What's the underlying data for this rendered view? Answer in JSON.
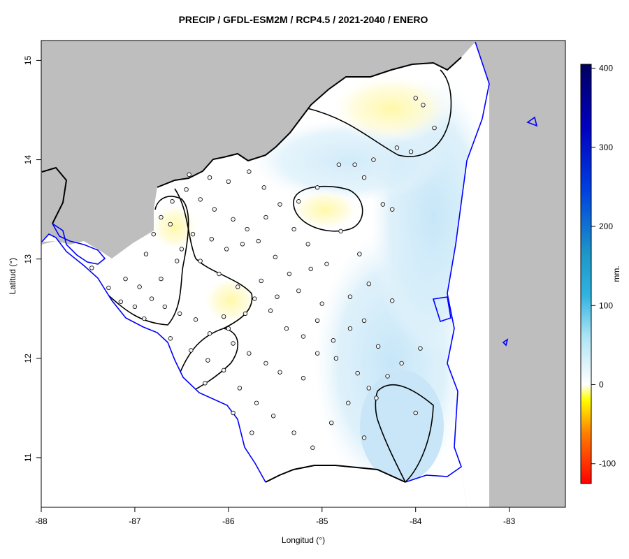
{
  "title": "PRECIP / GFDL-ESM2M / RCP4.5 / 2021-2040 / ENERO",
  "xlabel": "Longitud (°)",
  "ylabel": "Latitud (°)",
  "x_ticks": [
    "-88",
    "-87",
    "-86",
    "-85",
    "-84",
    "-83"
  ],
  "y_ticks": [
    "11",
    "12",
    "13",
    "14",
    "15"
  ],
  "legend": {
    "unit": "mm.",
    "ticks": [
      "-100",
      "0",
      "100",
      "200",
      "300",
      "400"
    ]
  },
  "colors": {
    "land_background": "#bebebe",
    "coastline": "#0000ff",
    "border": "#000000",
    "contour": "#000000"
  },
  "chart_data": {
    "type": "heatmap",
    "title": "PRECIP / GFDL-ESM2M / RCP4.5 / 2021-2040 / ENERO",
    "xlabel": "Longitud (°)",
    "ylabel": "Latitud (°)",
    "xlim": [
      -88,
      -82.4
    ],
    "ylim": [
      10.5,
      15.2
    ],
    "colorbar": {
      "unit": "mm.",
      "range": [
        -125,
        405
      ],
      "ticks": [
        -100,
        0,
        100,
        200,
        300,
        400
      ]
    },
    "regions": [
      {
        "name": "yellow-northeast",
        "lon": -84.1,
        "lat": 14.5,
        "value": -15
      },
      {
        "name": "yellow-central-north",
        "lon": -84.9,
        "lat": 13.5,
        "value": -8
      },
      {
        "name": "yellow-west",
        "lon": -86.7,
        "lat": 13.35,
        "value": -6
      },
      {
        "name": "yellow-center",
        "lon": -85.9,
        "lat": 12.6,
        "value": -8
      },
      {
        "name": "blue-southeast",
        "lon": -84.1,
        "lat": 11.3,
        "value": 35
      },
      {
        "name": "blue-east",
        "lon": -83.9,
        "lat": 12.8,
        "value": 15
      }
    ],
    "stations": [
      [
        -87.46,
        12.91
      ],
      [
        -87.28,
        12.71
      ],
      [
        -87.15,
        12.57
      ],
      [
        -87.0,
        12.52
      ],
      [
        -86.82,
        12.6
      ],
      [
        -86.68,
        12.52
      ],
      [
        -86.52,
        12.45
      ],
      [
        -86.35,
        12.39
      ],
      [
        -86.2,
        12.25
      ],
      [
        -86.05,
        12.42
      ],
      [
        -85.95,
        12.15
      ],
      [
        -85.78,
        12.05
      ],
      [
        -85.6,
        11.95
      ],
      [
        -85.45,
        11.86
      ],
      [
        -85.2,
        11.8
      ],
      [
        -85.05,
        12.05
      ],
      [
        -84.88,
        12.18
      ],
      [
        -84.7,
        12.3
      ],
      [
        -84.55,
        12.38
      ],
      [
        -84.4,
        12.12
      ],
      [
        -84.6,
        13.05
      ],
      [
        -84.8,
        13.28
      ],
      [
        -84.95,
        12.95
      ],
      [
        -85.12,
        12.9
      ],
      [
        -85.35,
        12.85
      ],
      [
        -85.5,
        13.02
      ],
      [
        -85.68,
        13.18
      ],
      [
        -85.8,
        13.3
      ],
      [
        -85.95,
        13.4
      ],
      [
        -86.15,
        13.5
      ],
      [
        -86.3,
        13.6
      ],
      [
        -86.45,
        13.7
      ],
      [
        -86.6,
        13.58
      ],
      [
        -86.72,
        13.42
      ],
      [
        -86.8,
        13.25
      ],
      [
        -86.5,
        13.1
      ],
      [
        -86.3,
        12.98
      ],
      [
        -86.1,
        12.85
      ],
      [
        -85.9,
        12.72
      ],
      [
        -85.72,
        12.6
      ],
      [
        -85.55,
        12.48
      ],
      [
        -85.38,
        12.3
      ],
      [
        -85.2,
        12.22
      ],
      [
        -85.0,
        12.55
      ],
      [
        -84.82,
        13.95
      ],
      [
        -84.55,
        13.82
      ],
      [
        -84.2,
        14.12
      ],
      [
        -84.0,
        14.62
      ],
      [
        -84.05,
        14.08
      ],
      [
        -83.8,
        14.32
      ],
      [
        -83.92,
        14.55
      ],
      [
        -84.45,
        14.0
      ],
      [
        -84.65,
        13.95
      ],
      [
        -84.35,
        13.55
      ],
      [
        -84.25,
        13.5
      ],
      [
        -85.05,
        13.72
      ],
      [
        -85.25,
        13.58
      ],
      [
        -85.6,
        13.42
      ],
      [
        -85.85,
        13.15
      ],
      [
        -86.02,
        13.1
      ],
      [
        -86.18,
        13.2
      ],
      [
        -86.38,
        13.25
      ],
      [
        -86.55,
        12.98
      ],
      [
        -86.72,
        12.8
      ],
      [
        -86.95,
        12.72
      ],
      [
        -87.1,
        12.8
      ],
      [
        -86.9,
        12.4
      ],
      [
        -86.62,
        12.2
      ],
      [
        -86.4,
        12.08
      ],
      [
        -86.22,
        11.98
      ],
      [
        -86.05,
        11.88
      ],
      [
        -85.88,
        11.7
      ],
      [
        -85.7,
        11.55
      ],
      [
        -85.52,
        11.42
      ],
      [
        -85.3,
        11.25
      ],
      [
        -85.1,
        11.1
      ],
      [
        -84.9,
        11.35
      ],
      [
        -84.72,
        11.55
      ],
      [
        -84.5,
        11.7
      ],
      [
        -84.3,
        11.82
      ],
      [
        -84.15,
        11.95
      ],
      [
        -83.95,
        12.1
      ],
      [
        -84.25,
        12.58
      ],
      [
        -84.5,
        12.75
      ],
      [
        -84.7,
        12.62
      ],
      [
        -85.15,
        13.15
      ],
      [
        -85.3,
        13.3
      ],
      [
        -85.45,
        13.55
      ],
      [
        -85.62,
        13.72
      ],
      [
        -85.78,
        13.88
      ],
      [
        -86.0,
        13.78
      ],
      [
        -86.2,
        13.82
      ],
      [
        -86.42,
        13.85
      ],
      [
        -86.62,
        13.35
      ],
      [
        -86.88,
        13.05
      ],
      [
        -86.0,
        12.3
      ],
      [
        -85.82,
        12.45
      ],
      [
        -85.65,
        12.78
      ],
      [
        -85.48,
        12.62
      ],
      [
        -85.25,
        12.68
      ],
      [
        -85.05,
        12.38
      ],
      [
        -84.85,
        12.0
      ],
      [
        -84.62,
        11.85
      ],
      [
        -84.42,
        11.6
      ],
      [
        -84.55,
        11.2
      ],
      [
        -84.0,
        11.45
      ],
      [
        -86.25,
        11.75
      ],
      [
        -85.95,
        11.45
      ],
      [
        -85.75,
        11.25
      ]
    ],
    "contours": [
      {
        "level": 0,
        "note": "closed contours around yellow areas and blue southeast area"
      }
    ]
  }
}
